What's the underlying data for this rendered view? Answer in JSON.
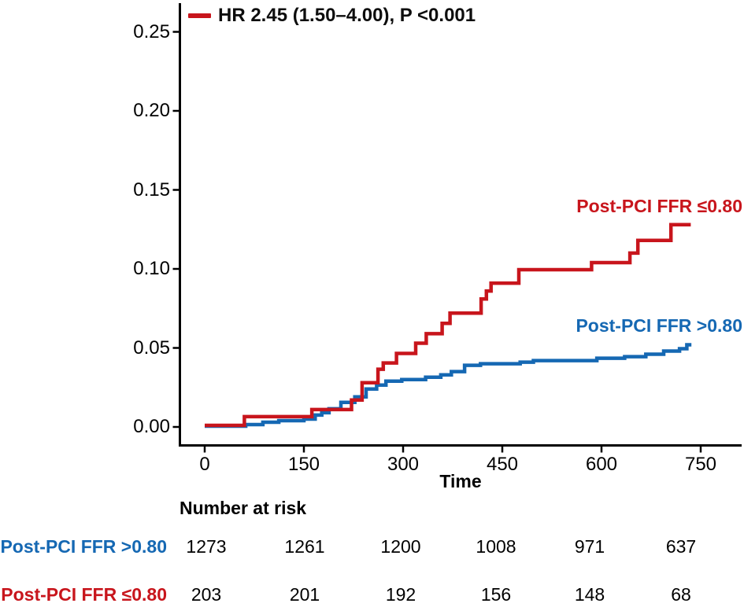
{
  "chart_data": {
    "type": "line",
    "subtype": "kaplan-meier-step-cumulative-incidence",
    "title": "",
    "legend_text": "HR 2.45 (1.50–4.00), P <0.001",
    "xlabel": "Time",
    "ylabel": "",
    "grid": false,
    "legend_position": "top-left",
    "xlim": [
      0,
      810
    ],
    "ylim": [
      0,
      0.26
    ],
    "x_tick_values": [
      0,
      150,
      300,
      450,
      600,
      750
    ],
    "x_tick_labels": [
      "0",
      "150",
      "300",
      "450",
      "600",
      "750"
    ],
    "y_tick_values": [
      0,
      0.05,
      0.1,
      0.15,
      0.2,
      0.25
    ],
    "y_tick_labels": [
      "0.00",
      "0.05",
      "0.10",
      "0.15",
      "0.20",
      "0.25"
    ],
    "series": [
      {
        "name": "Post-PCI FFR ≤0.80",
        "color": "#C8151C",
        "end_time": 735,
        "steps": [
          [
            0,
            0.001
          ],
          [
            60,
            0.0065
          ],
          [
            162,
            0.011
          ],
          [
            222,
            0.017
          ],
          [
            238,
            0.028
          ],
          [
            262,
            0.0365
          ],
          [
            270,
            0.0405
          ],
          [
            290,
            0.0465
          ],
          [
            319,
            0.053
          ],
          [
            335,
            0.059
          ],
          [
            359,
            0.0655
          ],
          [
            371,
            0.072
          ],
          [
            418,
            0.081
          ],
          [
            426,
            0.086
          ],
          [
            433,
            0.091
          ],
          [
            475,
            0.0995
          ],
          [
            585,
            0.104
          ],
          [
            643,
            0.11
          ],
          [
            655,
            0.118
          ],
          [
            705,
            0.128
          ]
        ]
      },
      {
        "name": "Post-PCI FFR >0.80",
        "color": "#1568B3",
        "end_time": 736,
        "steps": [
          [
            0,
            0.0005
          ],
          [
            62,
            0.0015
          ],
          [
            88,
            0.003
          ],
          [
            112,
            0.004
          ],
          [
            150,
            0.005
          ],
          [
            167,
            0.0075
          ],
          [
            177,
            0.009
          ],
          [
            188,
            0.0115
          ],
          [
            206,
            0.0155
          ],
          [
            227,
            0.019
          ],
          [
            244,
            0.024
          ],
          [
            260,
            0.0265
          ],
          [
            274,
            0.029
          ],
          [
            298,
            0.03
          ],
          [
            334,
            0.0315
          ],
          [
            357,
            0.033
          ],
          [
            373,
            0.035
          ],
          [
            393,
            0.039
          ],
          [
            417,
            0.04
          ],
          [
            477,
            0.041
          ],
          [
            497,
            0.042
          ],
          [
            593,
            0.0435
          ],
          [
            635,
            0.0445
          ],
          [
            667,
            0.046
          ],
          [
            694,
            0.048
          ],
          [
            718,
            0.0495
          ],
          [
            729,
            0.052
          ]
        ]
      }
    ],
    "number_at_risk": {
      "title": "Number at risk",
      "times": [
        0,
        150,
        300,
        450,
        600,
        750
      ],
      "rows": [
        {
          "label": "Post-PCI FFR >0.80",
          "color": "#1568B3",
          "values": [
            1273,
            1261,
            1200,
            1008,
            971,
            637
          ]
        },
        {
          "label": "Post-PCI FFR ≤0.80",
          "color": "#C8151C",
          "values": [
            203,
            201,
            192,
            156,
            148,
            68
          ]
        }
      ]
    }
  },
  "colors": {
    "red": "#C8151C",
    "blue": "#1568B3",
    "axis": "#000000",
    "background": "#FFFFFF"
  }
}
